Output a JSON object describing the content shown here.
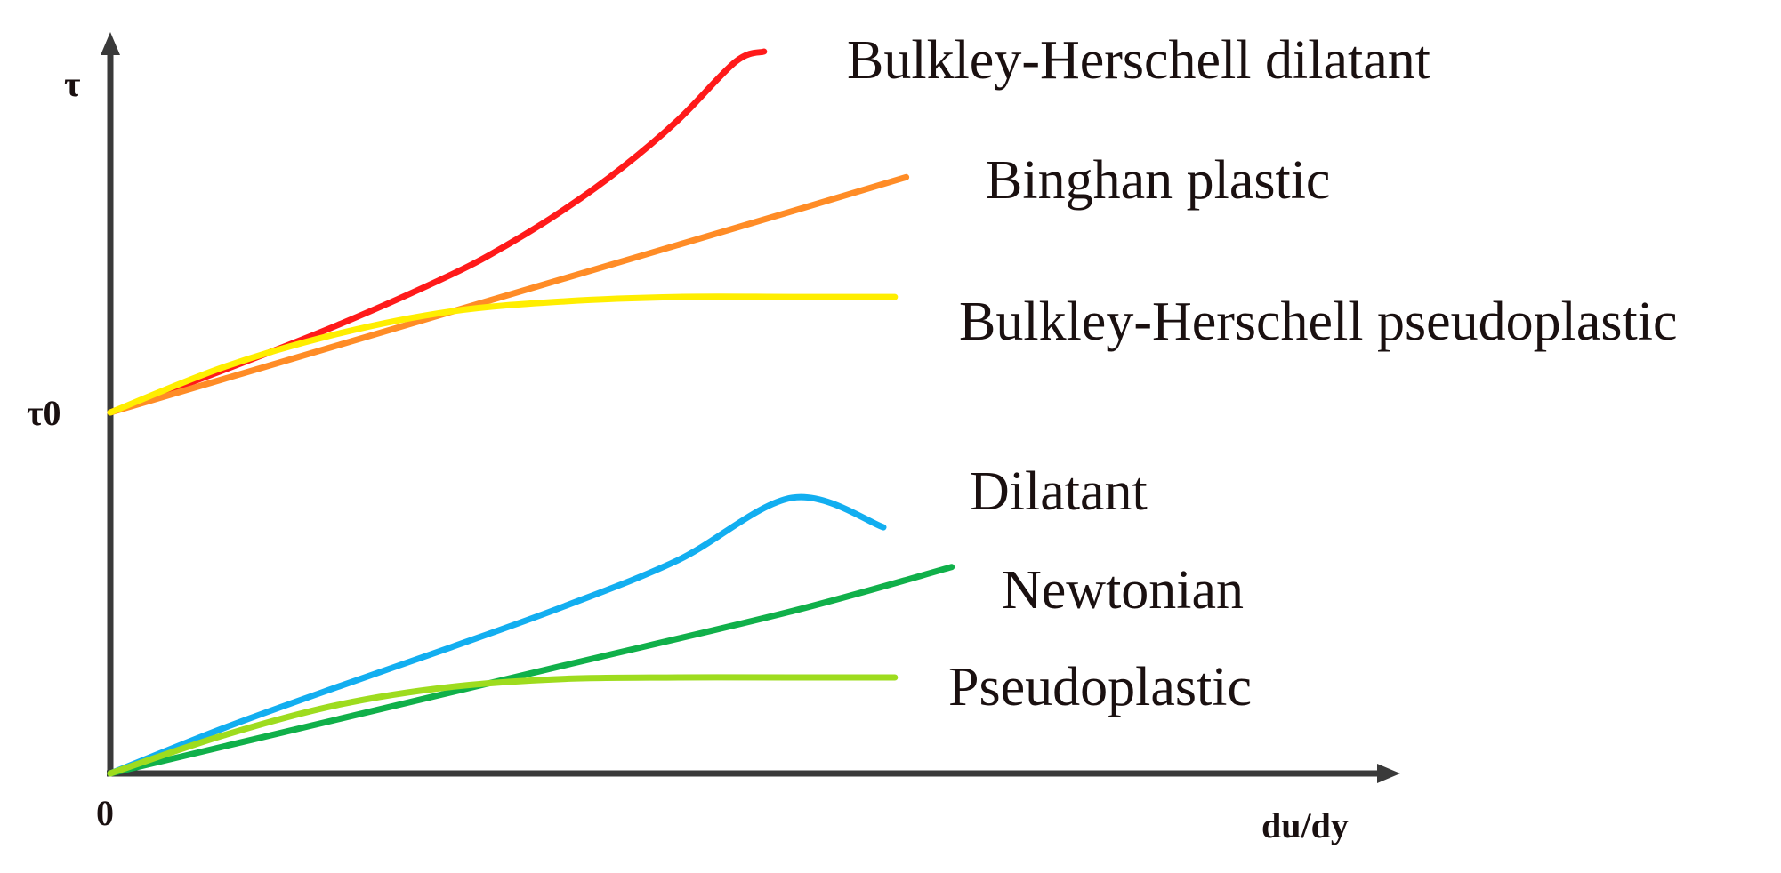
{
  "chart_data": {
    "type": "line",
    "title": "",
    "xlabel": "du/dy",
    "ylabel": "τ",
    "xlim": [
      0,
      1.0
    ],
    "ylim": [
      0,
      1.0
    ],
    "x_ticks": [
      "0"
    ],
    "y_ticks": [
      "τ0"
    ],
    "grid": false,
    "legend": "inline labels at line ends",
    "series": [
      {
        "name": "Bulkley-Herschell dilatant",
        "color": "#ff1a1a",
        "x": [
          0,
          0.1,
          0.2,
          0.3,
          0.35,
          0.4,
          0.45,
          0.5,
          0.55,
          0.575
        ],
        "y": [
          0.5,
          0.559,
          0.621,
          0.691,
          0.733,
          0.782,
          0.839,
          0.906,
          0.986,
          1.0
        ]
      },
      {
        "name": "Binghan plastic",
        "color": "#ff8c26",
        "x": [
          0,
          0.2,
          0.4,
          0.6,
          0.7
        ],
        "y": [
          0.5,
          0.593,
          0.686,
          0.779,
          0.826
        ]
      },
      {
        "name": "Bulkley-Herschell pseudoplastic",
        "color": "#ffee00",
        "x": [
          0,
          0.1,
          0.2,
          0.3,
          0.4,
          0.5,
          0.6,
          0.69
        ],
        "y": [
          0.5,
          0.563,
          0.609,
          0.64,
          0.654,
          0.66,
          0.66,
          0.66
        ]
      },
      {
        "name": "Dilatant",
        "color": "#12aef0",
        "x": [
          0,
          0.1,
          0.2,
          0.3,
          0.4,
          0.5,
          0.6,
          0.68
        ],
        "y": [
          0,
          0.063,
          0.12,
          0.175,
          0.232,
          0.296,
          0.382,
          0.341
        ]
      },
      {
        "name": "Newtonian",
        "color": "#10b04a",
        "x": [
          0,
          0.2,
          0.4,
          0.6,
          0.74
        ],
        "y": [
          0,
          0.075,
          0.15,
          0.225,
          0.286
        ]
      },
      {
        "name": "Pseudoplastic",
        "color": "#9edc1e",
        "x": [
          0,
          0.1,
          0.2,
          0.3,
          0.4,
          0.5,
          0.6,
          0.69
        ],
        "y": [
          0,
          0.053,
          0.095,
          0.12,
          0.131,
          0.133,
          0.133,
          0.133
        ]
      }
    ]
  }
}
